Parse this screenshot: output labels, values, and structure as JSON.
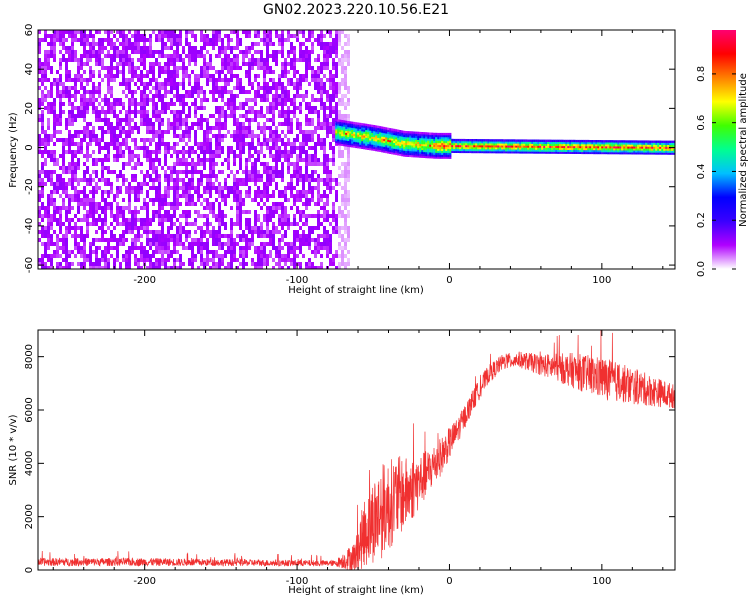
{
  "figure": {
    "title": "GN02.2023.220.10.56.E21"
  },
  "chart_data": [
    {
      "type": "heatmap",
      "title": "",
      "xlabel": "Height of straight line (km)",
      "ylabel": "Frequency (Hz)",
      "xlim": [
        -270,
        148
      ],
      "ylim": [
        -62,
        60
      ],
      "xticks": [
        -200,
        -100,
        0,
        100
      ],
      "yticks": [
        -60,
        -40,
        -20,
        0,
        20,
        40,
        60
      ],
      "colorbar": {
        "label": "Normalized spectral amplitude",
        "ticks": [
          0.0,
          0.2,
          0.4,
          0.6,
          0.8
        ],
        "tick_labels": [
          "0.0",
          "0.2",
          "0.4",
          "0.6",
          "0.8"
        ],
        "range": [
          0,
          0.98
        ],
        "colormap": [
          "#ffffff",
          "#b000ff",
          "#3a00ff",
          "#0000ff",
          "#00c0ff",
          "#00ff90",
          "#40ff00",
          "#ffff00",
          "#ff8000",
          "#ff0000",
          "#ff0070"
        ]
      },
      "regions": [
        {
          "name": "broadband noise",
          "x_range": [
            -270,
            -75
          ],
          "freq_range": [
            -62,
            60
          ],
          "amplitude": 0.08
        },
        {
          "name": "signal line",
          "x_range": [
            -75,
            148
          ],
          "center_freq": [
            [
              -75,
              8
            ],
            [
              -50,
              5
            ],
            [
              -30,
              2
            ],
            [
              -10,
              1
            ],
            [
              148,
              0
            ]
          ],
          "amplitude": 0.95
        }
      ]
    },
    {
      "type": "line",
      "title": "",
      "xlabel": "Height of straight line (km)",
      "ylabel": "SNR (10 * v/v)",
      "xlim": [
        -270,
        148
      ],
      "ylim": [
        0,
        9000
      ],
      "xticks": [
        -200,
        -100,
        0,
        100
      ],
      "yticks": [
        0,
        2000,
        4000,
        6000,
        8000
      ],
      "color": "#f03030",
      "envelope": {
        "x": [
          -270,
          -200,
          -150,
          -100,
          -75,
          -62,
          -55,
          -45,
          -35,
          -25,
          -15,
          -5,
          5,
          15,
          25,
          35,
          45,
          60,
          80,
          100,
          120,
          148
        ],
        "mean": [
          300,
          300,
          280,
          260,
          250,
          500,
          1500,
          2200,
          2700,
          3000,
          3600,
          4300,
          5200,
          6300,
          7300,
          7800,
          7900,
          7700,
          7500,
          7200,
          6900,
          6500
        ],
        "noise": [
          150,
          150,
          130,
          120,
          110,
          600,
          1400,
          1800,
          1600,
          1200,
          900,
          700,
          500,
          400,
          350,
          300,
          300,
          400,
          650,
          800,
          700,
          450
        ]
      }
    }
  ]
}
